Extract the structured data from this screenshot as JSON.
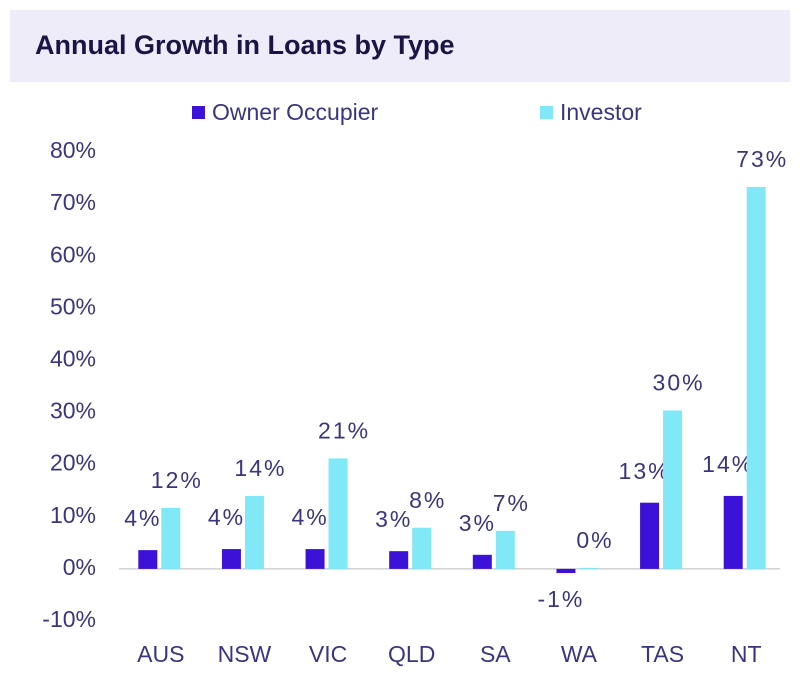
{
  "chart_data": {
    "type": "bar",
    "title": "Annual Growth in Loans by Type",
    "categories": [
      "AUS",
      "NSW",
      "VIC",
      "QLD",
      "SA",
      "WA",
      "TAS",
      "NT"
    ],
    "series": [
      {
        "name": "Owner Occupier",
        "color": "#3d12d8",
        "values": [
          3.6,
          3.8,
          3.8,
          3.4,
          2.7,
          -0.8,
          12.7,
          14.0
        ],
        "value_labels": [
          "4%",
          "4%",
          "4%",
          "3%",
          "3%",
          "-1%",
          "13%",
          "14%"
        ]
      },
      {
        "name": "Investor",
        "color": "#80e8f6",
        "values": [
          11.7,
          14.0,
          21.2,
          7.9,
          7.3,
          0.2,
          30.4,
          73.3
        ],
        "value_labels": [
          "12%",
          "14%",
          "21%",
          "8%",
          "7%",
          "0%",
          "30%",
          "73%"
        ]
      }
    ],
    "ylim": [
      -10,
      80
    ],
    "yticks": [
      {
        "value": -10,
        "label": "-10%"
      },
      {
        "value": 0,
        "label": "0%"
      },
      {
        "value": 10,
        "label": "10%"
      },
      {
        "value": 20,
        "label": "20%"
      },
      {
        "value": 30,
        "label": "30%"
      },
      {
        "value": 40,
        "label": "40%"
      },
      {
        "value": 50,
        "label": "50%"
      },
      {
        "value": 60,
        "label": "60%"
      },
      {
        "value": 70,
        "label": "70%"
      },
      {
        "value": 80,
        "label": "80%"
      }
    ]
  }
}
